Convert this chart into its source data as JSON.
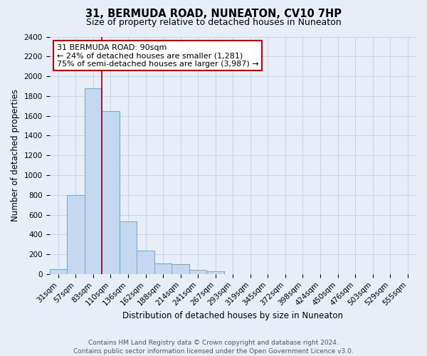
{
  "title": "31, BERMUDA ROAD, NUNEATON, CV10 7HP",
  "subtitle": "Size of property relative to detached houses in Nuneaton",
  "xlabel": "Distribution of detached houses by size in Nuneaton",
  "ylabel": "Number of detached properties",
  "bar_labels": [
    "31sqm",
    "57sqm",
    "83sqm",
    "110sqm",
    "136sqm",
    "162sqm",
    "188sqm",
    "214sqm",
    "241sqm",
    "267sqm",
    "293sqm",
    "319sqm",
    "345sqm",
    "372sqm",
    "398sqm",
    "424sqm",
    "450sqm",
    "476sqm",
    "503sqm",
    "529sqm",
    "555sqm"
  ],
  "bar_values": [
    50,
    800,
    1880,
    1650,
    530,
    235,
    110,
    100,
    40,
    30,
    0,
    0,
    0,
    0,
    0,
    0,
    0,
    0,
    0,
    0,
    0
  ],
  "bar_color": "#c5d8f0",
  "bar_edge_color": "#6aaad4",
  "ylim": [
    0,
    2400
  ],
  "yticks": [
    0,
    200,
    400,
    600,
    800,
    1000,
    1200,
    1400,
    1600,
    1800,
    2000,
    2200,
    2400
  ],
  "vline_color": "#990000",
  "annotation_title": "31 BERMUDA ROAD: 90sqm",
  "annotation_line1": "← 24% of detached houses are smaller (1,281)",
  "annotation_line2": "75% of semi-detached houses are larger (3,987) →",
  "annotation_box_facecolor": "#ffffff",
  "annotation_box_edgecolor": "#cc0000",
  "footer_line1": "Contains HM Land Registry data © Crown copyright and database right 2024.",
  "footer_line2": "Contains public sector information licensed under the Open Government Licence v3.0.",
  "background_color": "#e8eef8",
  "grid_color": "#c8d4e8",
  "title_fontsize": 10.5,
  "subtitle_fontsize": 9,
  "axis_label_fontsize": 8.5,
  "tick_fontsize": 7.5,
  "footer_fontsize": 6.5
}
